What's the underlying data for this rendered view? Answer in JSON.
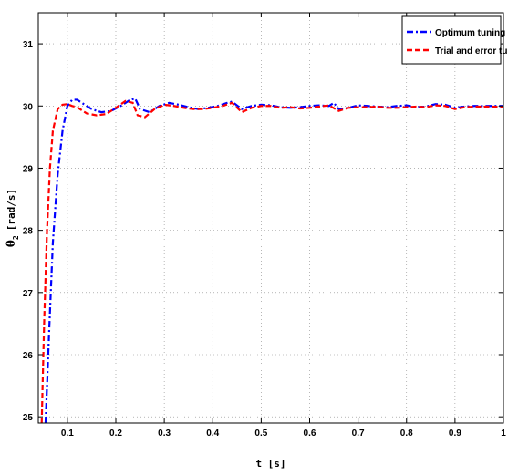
{
  "chart_data": {
    "type": "line",
    "xlabel": "t [s]",
    "ylabel_main": "θ",
    "ylabel_sub": "2",
    "ylabel_rest": "[rad/s]",
    "xlim": [
      0.04,
      1.0
    ],
    "ylim": [
      24.9,
      31.5
    ],
    "xticks": [
      0.1,
      0.2,
      0.3,
      0.4,
      0.5,
      0.6,
      0.7,
      0.8,
      0.9,
      1
    ],
    "xtick_labels": [
      "0.1",
      "0.2",
      "0.3",
      "0.4",
      "0.5",
      "0.6",
      "0.7",
      "0.8",
      "0.9",
      "1"
    ],
    "yticks": [
      25,
      26,
      27,
      28,
      29,
      30,
      31
    ],
    "ytick_labels": [
      "25",
      "26",
      "27",
      "28",
      "29",
      "30",
      "31"
    ],
    "grid": true,
    "legend_position": "top-right",
    "series": [
      {
        "name": "Optimum tuning",
        "color": "#0000ff",
        "style": "dash-dot",
        "x": [
          0.055,
          0.062,
          0.07,
          0.08,
          0.09,
          0.1,
          0.11,
          0.12,
          0.13,
          0.15,
          0.17,
          0.19,
          0.21,
          0.23,
          0.24,
          0.25,
          0.27,
          0.29,
          0.31,
          0.33,
          0.35,
          0.37,
          0.39,
          0.41,
          0.43,
          0.44,
          0.46,
          0.48,
          0.5,
          0.52,
          0.54,
          0.56,
          0.58,
          0.6,
          0.62,
          0.64,
          0.65,
          0.66,
          0.68,
          0.7,
          0.72,
          0.74,
          0.76,
          0.78,
          0.8,
          0.82,
          0.84,
          0.86,
          0.88,
          0.9,
          0.92,
          0.94,
          0.96,
          0.98,
          1.0
        ],
        "y": [
          24.9,
          26.3,
          27.8,
          28.9,
          29.6,
          30.0,
          30.1,
          30.1,
          30.05,
          29.95,
          29.9,
          29.92,
          30.0,
          30.1,
          30.12,
          29.95,
          29.9,
          30.0,
          30.05,
          30.02,
          29.98,
          29.95,
          29.97,
          30.0,
          30.05,
          30.07,
          29.95,
          30.0,
          30.02,
          30.01,
          29.98,
          29.97,
          29.98,
          30.0,
          30.01,
          30.0,
          30.05,
          29.95,
          29.97,
          30.01,
          30.0,
          29.99,
          29.98,
          30.0,
          30.01,
          29.98,
          29.99,
          30.03,
          30.02,
          29.97,
          29.99,
          30.0,
          30.0,
          30.0,
          30.0
        ]
      },
      {
        "name": "Trial and error tuning",
        "color": "#ff0000",
        "style": "dashed",
        "x": [
          0.047,
          0.052,
          0.058,
          0.064,
          0.07,
          0.08,
          0.09,
          0.1,
          0.11,
          0.12,
          0.14,
          0.16,
          0.18,
          0.2,
          0.22,
          0.235,
          0.245,
          0.26,
          0.28,
          0.3,
          0.32,
          0.34,
          0.36,
          0.38,
          0.4,
          0.42,
          0.44,
          0.46,
          0.48,
          0.5,
          0.52,
          0.54,
          0.56,
          0.58,
          0.6,
          0.62,
          0.64,
          0.66,
          0.68,
          0.7,
          0.72,
          0.74,
          0.76,
          0.78,
          0.8,
          0.82,
          0.84,
          0.86,
          0.88,
          0.9,
          0.92,
          0.94,
          0.96,
          0.98,
          1.0
        ],
        "y": [
          24.9,
          26.5,
          28.0,
          29.0,
          29.6,
          29.95,
          30.02,
          30.03,
          30.0,
          29.98,
          29.88,
          29.85,
          29.87,
          29.97,
          30.08,
          30.05,
          29.85,
          29.82,
          29.95,
          30.02,
          30.0,
          29.97,
          29.95,
          29.95,
          29.97,
          30.0,
          30.05,
          29.9,
          29.97,
          30.0,
          30.0,
          29.97,
          29.98,
          29.96,
          29.97,
          29.99,
          30.01,
          29.92,
          29.97,
          29.98,
          29.98,
          29.99,
          29.97,
          29.97,
          29.98,
          29.99,
          29.98,
          30.01,
          30.0,
          29.95,
          29.98,
          29.99,
          29.99,
          29.99,
          29.98
        ]
      }
    ]
  }
}
